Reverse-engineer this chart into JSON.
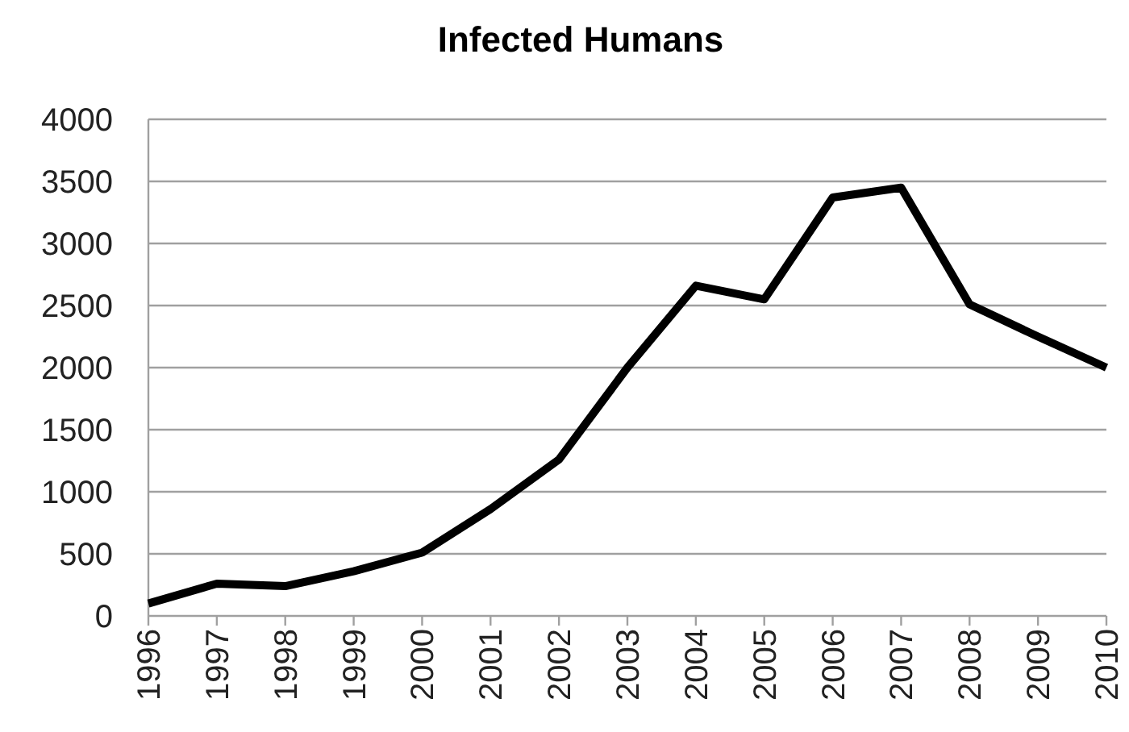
{
  "chart_data": {
    "type": "line",
    "title": "Infected Humans",
    "categories": [
      "1996",
      "1997",
      "1998",
      "1999",
      "2000",
      "2001",
      "2002",
      "2003",
      "2004",
      "2005",
      "2006",
      "2007",
      "2008",
      "2009",
      "2010"
    ],
    "series": [
      {
        "color": "#000000",
        "values": [
          100,
          260,
          240,
          360,
          510,
          860,
          1260,
          2000,
          2660,
          2550,
          3370,
          3450,
          2510,
          2250,
          2000
        ]
      }
    ],
    "ylim": [
      0,
      4000
    ],
    "yticks": [
      0,
      500,
      1000,
      1500,
      2000,
      2500,
      3000,
      3500,
      4000
    ],
    "grid": "y",
    "marker": "none",
    "line_style": "solid"
  }
}
